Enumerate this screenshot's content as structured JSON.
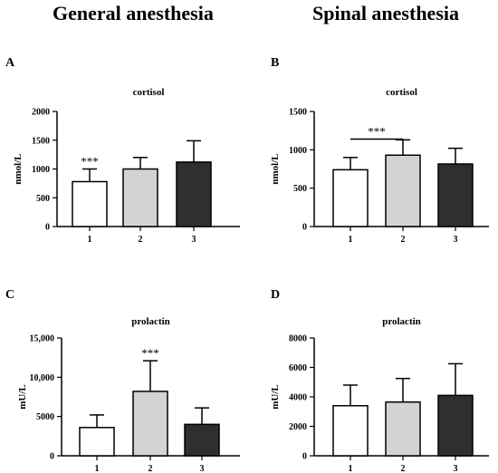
{
  "columns": {
    "left": "General anesthesia",
    "right": "Spinal anesthesia"
  },
  "chart_data": [
    {
      "panel": "A",
      "type": "bar",
      "title": "cortisol",
      "ylabel": "nmol/L",
      "xlabel": "",
      "categories": [
        "1",
        "2",
        "3"
      ],
      "values": [
        780,
        1000,
        1120
      ],
      "errors": [
        220,
        200,
        370
      ],
      "ylim": [
        0,
        2000
      ],
      "yticks": [
        0,
        500,
        1000,
        1500,
        2000
      ],
      "ytick_labels": [
        "0",
        "500",
        "1000",
        "1500",
        "2000"
      ],
      "annotations": [
        {
          "text": "***",
          "category": "1"
        }
      ],
      "bracket": null
    },
    {
      "panel": "B",
      "type": "bar",
      "title": "cortisol",
      "ylabel": "nmol/L",
      "xlabel": "",
      "categories": [
        "1",
        "2",
        "3"
      ],
      "values": [
        740,
        930,
        815
      ],
      "errors": [
        160,
        200,
        205
      ],
      "ylim": [
        0,
        1500
      ],
      "yticks": [
        0,
        500,
        1000,
        1500
      ],
      "ytick_labels": [
        "0",
        "500",
        "1000",
        "1500"
      ],
      "annotations": [],
      "bracket": {
        "from": "1",
        "to": "2",
        "value": 1140,
        "text": "***"
      }
    },
    {
      "panel": "C",
      "type": "bar",
      "title": "prolactin",
      "ylabel": "mU/L",
      "xlabel": "",
      "categories": [
        "1",
        "2",
        "3"
      ],
      "values": [
        3600,
        8200,
        4000
      ],
      "errors": [
        1600,
        3900,
        2100
      ],
      "ylim": [
        0,
        15000
      ],
      "yticks": [
        0,
        5000,
        10000,
        15000
      ],
      "ytick_labels": [
        "0",
        "5000",
        "10,000",
        "15,000"
      ],
      "annotations": [
        {
          "text": "***",
          "category": "2"
        }
      ],
      "bracket": null
    },
    {
      "panel": "D",
      "type": "bar",
      "title": "prolactin",
      "ylabel": "mU/L",
      "xlabel": "",
      "categories": [
        "1",
        "2",
        "3"
      ],
      "values": [
        3400,
        3650,
        4100
      ],
      "errors": [
        1400,
        1600,
        2150
      ],
      "ylim": [
        0,
        8000
      ],
      "yticks": [
        0,
        2000,
        4000,
        6000,
        8000
      ],
      "ytick_labels": [
        "0",
        "2000",
        "4000",
        "6000",
        "8000"
      ],
      "annotations": [],
      "bracket": null
    }
  ],
  "bar_colors": [
    "#ffffff",
    "#d3d3d3",
    "#2f2f2f"
  ]
}
